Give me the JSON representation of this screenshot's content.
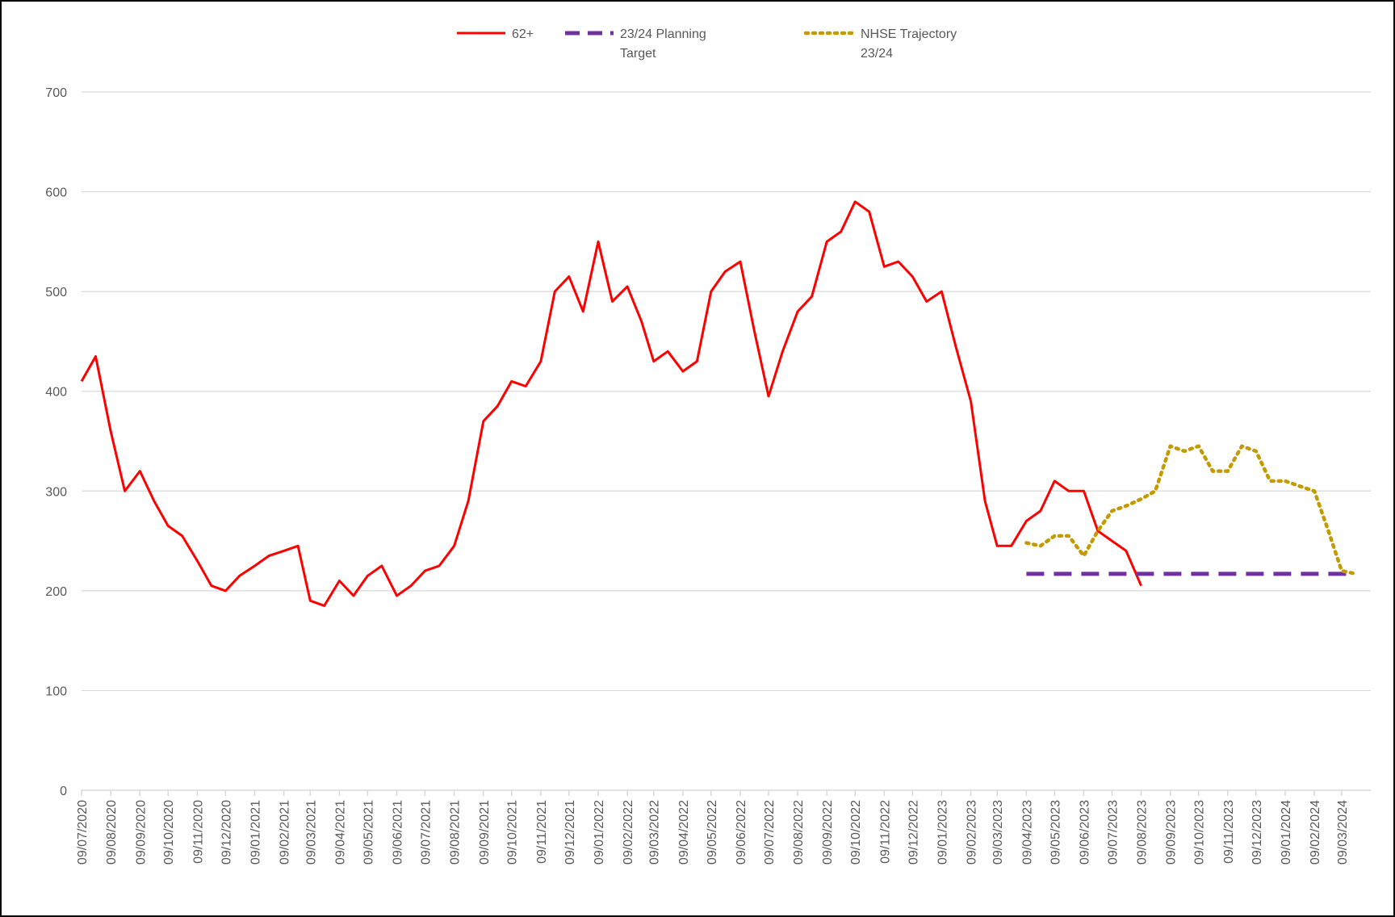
{
  "chart_data": {
    "type": "line",
    "x": [
      "09/07/2020",
      "24/07/2020",
      "09/08/2020",
      "24/08/2020",
      "09/09/2020",
      "24/09/2020",
      "09/10/2020",
      "24/10/2020",
      "09/11/2020",
      "24/11/2020",
      "09/12/2020",
      "24/12/2020",
      "09/01/2021",
      "24/01/2021",
      "09/02/2021",
      "24/02/2021",
      "09/03/2021",
      "24/03/2021",
      "09/04/2021",
      "24/04/2021",
      "09/05/2021",
      "24/05/2021",
      "09/06/2021",
      "24/06/2021",
      "09/07/2021",
      "24/07/2021",
      "09/08/2021",
      "24/08/2021",
      "09/09/2021",
      "24/09/2021",
      "09/10/2021",
      "24/10/2021",
      "09/11/2021",
      "24/11/2021",
      "09/12/2021",
      "24/12/2021",
      "09/01/2022",
      "24/01/2022",
      "09/02/2022",
      "24/02/2022",
      "09/03/2022",
      "24/03/2022",
      "09/04/2022",
      "24/04/2022",
      "09/05/2022",
      "24/05/2022",
      "09/06/2022",
      "24/06/2022",
      "09/07/2022",
      "24/07/2022",
      "09/08/2022",
      "24/08/2022",
      "09/09/2022",
      "24/09/2022",
      "09/10/2022",
      "24/10/2022",
      "09/11/2022",
      "24/11/2022",
      "09/12/2022",
      "24/12/2022",
      "09/01/2023",
      "24/01/2023",
      "09/02/2023",
      "24/02/2023",
      "09/03/2023",
      "24/03/2023",
      "09/04/2023",
      "24/04/2023",
      "09/05/2023",
      "24/05/2023",
      "09/06/2023",
      "24/06/2023",
      "09/07/2023",
      "24/07/2023",
      "09/08/2023",
      "24/08/2023",
      "09/09/2023",
      "24/09/2023",
      "09/10/2023",
      "24/10/2023",
      "09/11/2023",
      "24/11/2023",
      "09/12/2023",
      "24/12/2023",
      "09/01/2024",
      "24/01/2024",
      "09/02/2024",
      "24/02/2024",
      "09/03/2024",
      "24/03/2024"
    ],
    "series": [
      {
        "name": "62+",
        "color": "#ff0000",
        "line_style": "solid",
        "values": [
          410,
          435,
          360,
          300,
          320,
          290,
          265,
          255,
          230,
          205,
          200,
          215,
          225,
          235,
          240,
          245,
          190,
          185,
          210,
          195,
          215,
          225,
          195,
          205,
          220,
          225,
          245,
          290,
          370,
          385,
          410,
          405,
          430,
          500,
          515,
          480,
          550,
          490,
          505,
          470,
          430,
          440,
          420,
          430,
          500,
          520,
          530,
          460,
          395,
          440,
          480,
          495,
          550,
          560,
          590,
          580,
          525,
          530,
          515,
          490,
          500,
          445,
          390,
          290,
          245,
          245,
          270,
          280,
          310,
          300,
          300,
          260,
          250,
          240,
          205,
          null,
          null,
          null,
          null,
          null,
          null,
          null,
          null,
          null,
          null,
          null,
          null,
          null,
          null,
          null
        ]
      },
      {
        "name": "23/24 Planning Target",
        "color": "#7030a0",
        "line_style": "dashed",
        "values": [
          null,
          null,
          null,
          null,
          null,
          null,
          null,
          null,
          null,
          null,
          null,
          null,
          null,
          null,
          null,
          null,
          null,
          null,
          null,
          null,
          null,
          null,
          null,
          null,
          null,
          null,
          null,
          null,
          null,
          null,
          null,
          null,
          null,
          null,
          null,
          null,
          null,
          null,
          null,
          null,
          null,
          null,
          null,
          null,
          null,
          null,
          null,
          null,
          null,
          null,
          null,
          null,
          null,
          null,
          null,
          null,
          null,
          null,
          null,
          null,
          null,
          null,
          null,
          null,
          null,
          null,
          217,
          217,
          217,
          217,
          217,
          217,
          217,
          217,
          217,
          217,
          217,
          217,
          217,
          217,
          217,
          217,
          217,
          217,
          217,
          217,
          217,
          217,
          217,
          217
        ]
      },
      {
        "name": "NHSE Trajectory 23/24",
        "color": "#c49a00",
        "line_style": "dotted",
        "values": [
          null,
          null,
          null,
          null,
          null,
          null,
          null,
          null,
          null,
          null,
          null,
          null,
          null,
          null,
          null,
          null,
          null,
          null,
          null,
          null,
          null,
          null,
          null,
          null,
          null,
          null,
          null,
          null,
          null,
          null,
          null,
          null,
          null,
          null,
          null,
          null,
          null,
          null,
          null,
          null,
          null,
          null,
          null,
          null,
          null,
          null,
          null,
          null,
          null,
          null,
          null,
          null,
          null,
          null,
          null,
          null,
          null,
          null,
          null,
          null,
          null,
          null,
          null,
          null,
          null,
          null,
          248,
          245,
          255,
          255,
          235,
          260,
          280,
          285,
          292,
          300,
          345,
          340,
          345,
          320,
          320,
          345,
          340,
          310,
          310,
          305,
          300,
          260,
          220,
          217
        ]
      }
    ],
    "xlim": [
      "09/07/2020",
      "09/04/2024"
    ],
    "xticks": [
      "09/07/2020",
      "09/08/2020",
      "09/09/2020",
      "09/10/2020",
      "09/11/2020",
      "09/12/2020",
      "09/01/2021",
      "09/02/2021",
      "09/03/2021",
      "09/04/2021",
      "09/05/2021",
      "09/06/2021",
      "09/07/2021",
      "09/08/2021",
      "09/09/2021",
      "09/10/2021",
      "09/11/2021",
      "09/12/2021",
      "09/01/2022",
      "09/02/2022",
      "09/03/2022",
      "09/04/2022",
      "09/05/2022",
      "09/06/2022",
      "09/07/2022",
      "09/08/2022",
      "09/09/2022",
      "09/10/2022",
      "09/11/2022",
      "09/12/2022",
      "09/01/2023",
      "09/02/2023",
      "09/03/2023",
      "09/04/2023",
      "09/05/2023",
      "09/06/2023",
      "09/07/2023",
      "09/08/2023",
      "09/09/2023",
      "09/10/2023",
      "09/11/2023",
      "09/12/2023",
      "09/01/2024",
      "09/02/2024",
      "09/03/2024"
    ],
    "ylim": [
      0,
      700
    ],
    "yticks": [
      0,
      100,
      200,
      300,
      400,
      500,
      600,
      700
    ],
    "grid": true,
    "legend": "top"
  }
}
